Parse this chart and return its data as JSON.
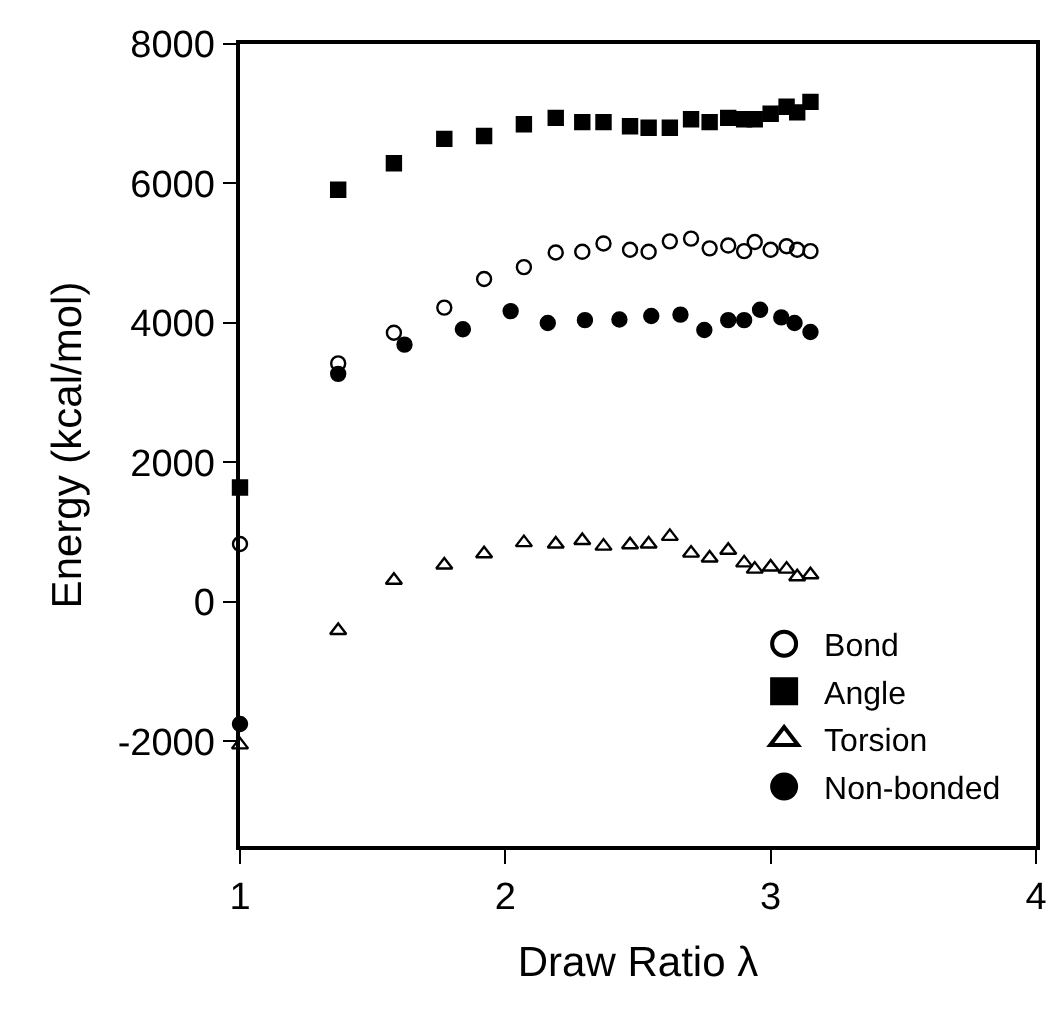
{
  "chart_data": {
    "type": "scatter",
    "xlabel": "Draw Ratio λ",
    "ylabel": "Energy (kcal/mol)",
    "x": [
      1,
      1.37,
      1.58,
      1.77,
      1.92,
      2.07,
      2.19,
      2.29,
      2.37,
      2.47,
      2.54,
      2.62,
      2.7,
      2.77,
      2.84,
      2.9,
      2.94,
      3.0,
      3.06,
      3.1,
      3.15
    ],
    "series": [
      {
        "name": "Bond",
        "color": "#000000",
        "marker": "circle-open",
        "values": [
          830,
          3420,
          3860,
          4220,
          4630,
          4800,
          5010,
          5020,
          5140,
          5050,
          5020,
          5170,
          5210,
          5070,
          5110,
          5030,
          5160,
          5050,
          5100,
          5050,
          5030
        ]
      },
      {
        "name": "Angle",
        "color": "#000000",
        "marker": "square",
        "values": [
          1640,
          5910,
          6290,
          6640,
          6680,
          6850,
          6940,
          6880,
          6880,
          6820,
          6800,
          6800,
          6920,
          6880,
          6940,
          6920,
          6920,
          7000,
          7100,
          7020,
          7170
        ]
      },
      {
        "name": "Torsion",
        "color": "#000000",
        "marker": "triangle-open",
        "values": [
          -2050,
          -410,
          310,
          530,
          690,
          850,
          830,
          880,
          800,
          820,
          830,
          940,
          700,
          630,
          740,
          560,
          470,
          500,
          470,
          360,
          390
        ]
      },
      {
        "name": "Non-bonded",
        "color": "#000000",
        "marker": "circle",
        "x": [
          1,
          1.37,
          1.62,
          1.84,
          2.02,
          2.16,
          2.3,
          2.43,
          2.55,
          2.66,
          2.75,
          2.84,
          2.9,
          2.96,
          3.04,
          3.09,
          3.15
        ],
        "values": [
          -1750,
          3270,
          3690,
          3910,
          4170,
          4000,
          4040,
          4050,
          4100,
          4120,
          3900,
          4040,
          4040,
          4190,
          4080,
          4000,
          3870
        ]
      }
    ],
    "xlim": [
      1,
      4
    ],
    "xticks": [
      1,
      2,
      3,
      4
    ],
    "ylim": [
      -3500,
      8000
    ],
    "yticks": [
      -2000,
      0,
      2000,
      4000,
      6000,
      8000
    ],
    "grid": false,
    "legend": "bottom right"
  }
}
